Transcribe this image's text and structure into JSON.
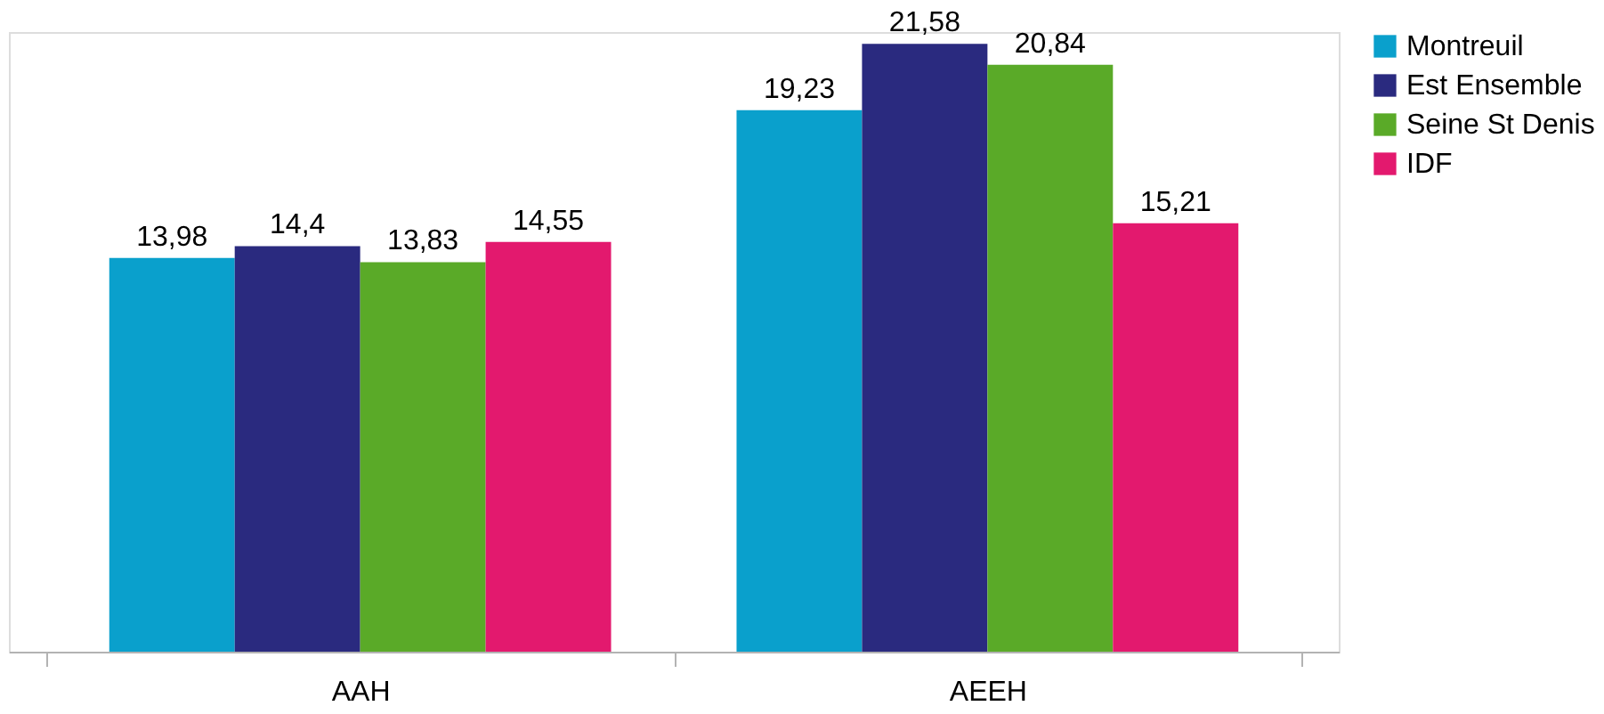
{
  "chart_data": {
    "type": "bar",
    "categories": [
      "AAH",
      "AEEH"
    ],
    "series": [
      {
        "name": "Montreuil",
        "color": "#0aa0cc",
        "values": [
          13.98,
          19.23
        ],
        "value_labels": [
          "13,98",
          "19,23"
        ]
      },
      {
        "name": "Est Ensemble",
        "color": "#2a2a7f",
        "values": [
          14.4,
          21.58
        ],
        "value_labels": [
          "14,4",
          "21,58"
        ]
      },
      {
        "name": "Seine St Denis",
        "color": "#5aaa28",
        "values": [
          13.83,
          20.84
        ],
        "value_labels": [
          "13,83",
          "20,84"
        ]
      },
      {
        "name": "IDF",
        "color": "#e3196e",
        "values": [
          14.55,
          15.21
        ],
        "value_labels": [
          "14,55",
          "15,21"
        ]
      }
    ],
    "grid": false,
    "legend": "right",
    "tick_labels": "x"
  }
}
